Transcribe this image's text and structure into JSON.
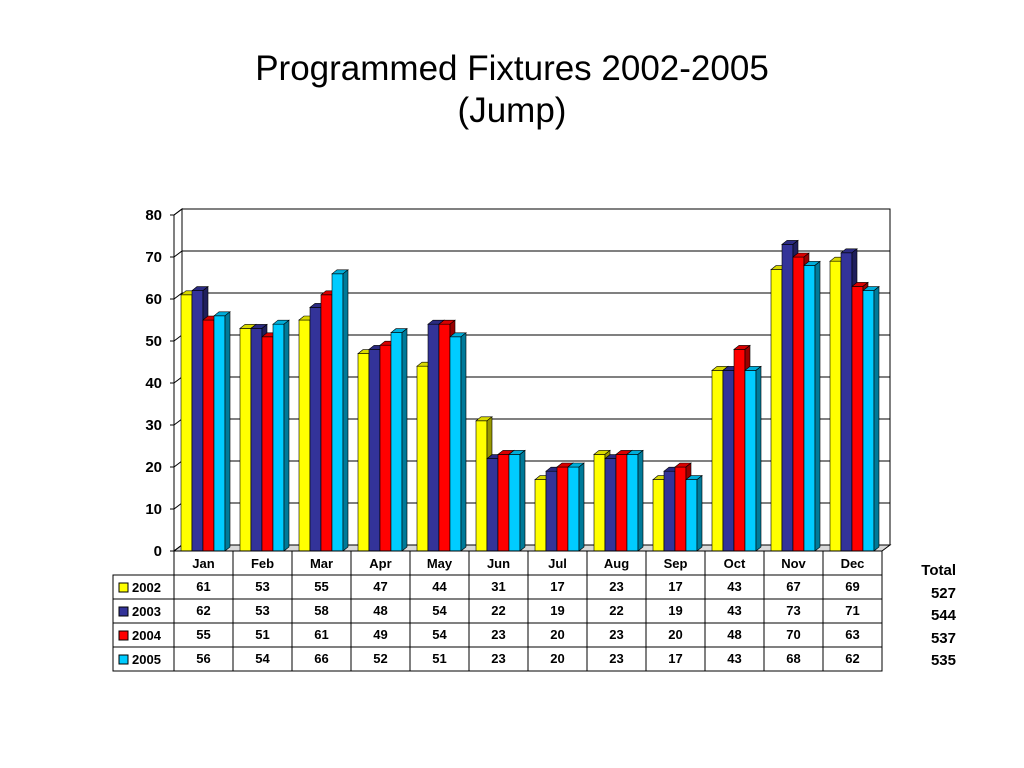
{
  "chart_data": {
    "type": "bar",
    "title": "Programmed Fixtures 2002-2005",
    "subtitle": "(Jump)",
    "categories": [
      "Jan",
      "Feb",
      "Mar",
      "Apr",
      "May",
      "Jun",
      "Jul",
      "Aug",
      "Sep",
      "Oct",
      "Nov",
      "Dec"
    ],
    "series": [
      {
        "name": "2002",
        "color": "#FFFF00",
        "values": [
          61,
          53,
          55,
          47,
          44,
          31,
          17,
          23,
          17,
          43,
          67,
          69
        ]
      },
      {
        "name": "2003",
        "color": "#333399",
        "values": [
          62,
          53,
          58,
          48,
          54,
          22,
          19,
          22,
          19,
          43,
          73,
          71
        ]
      },
      {
        "name": "2004",
        "color": "#FF0000",
        "values": [
          55,
          51,
          61,
          49,
          54,
          23,
          20,
          23,
          20,
          48,
          70,
          63
        ]
      },
      {
        "name": "2005",
        "color": "#00CCFF",
        "values": [
          56,
          54,
          66,
          52,
          51,
          23,
          20,
          23,
          17,
          43,
          68,
          62
        ]
      }
    ],
    "ylim": [
      0,
      80
    ],
    "yticks": [
      0,
      10,
      20,
      30,
      40,
      50,
      60,
      70,
      80
    ],
    "grid": true,
    "style": "3d-clustered-column",
    "data_table": true
  },
  "totals": {
    "label": "Total",
    "values": [
      "527",
      "544",
      "537",
      "535"
    ]
  }
}
